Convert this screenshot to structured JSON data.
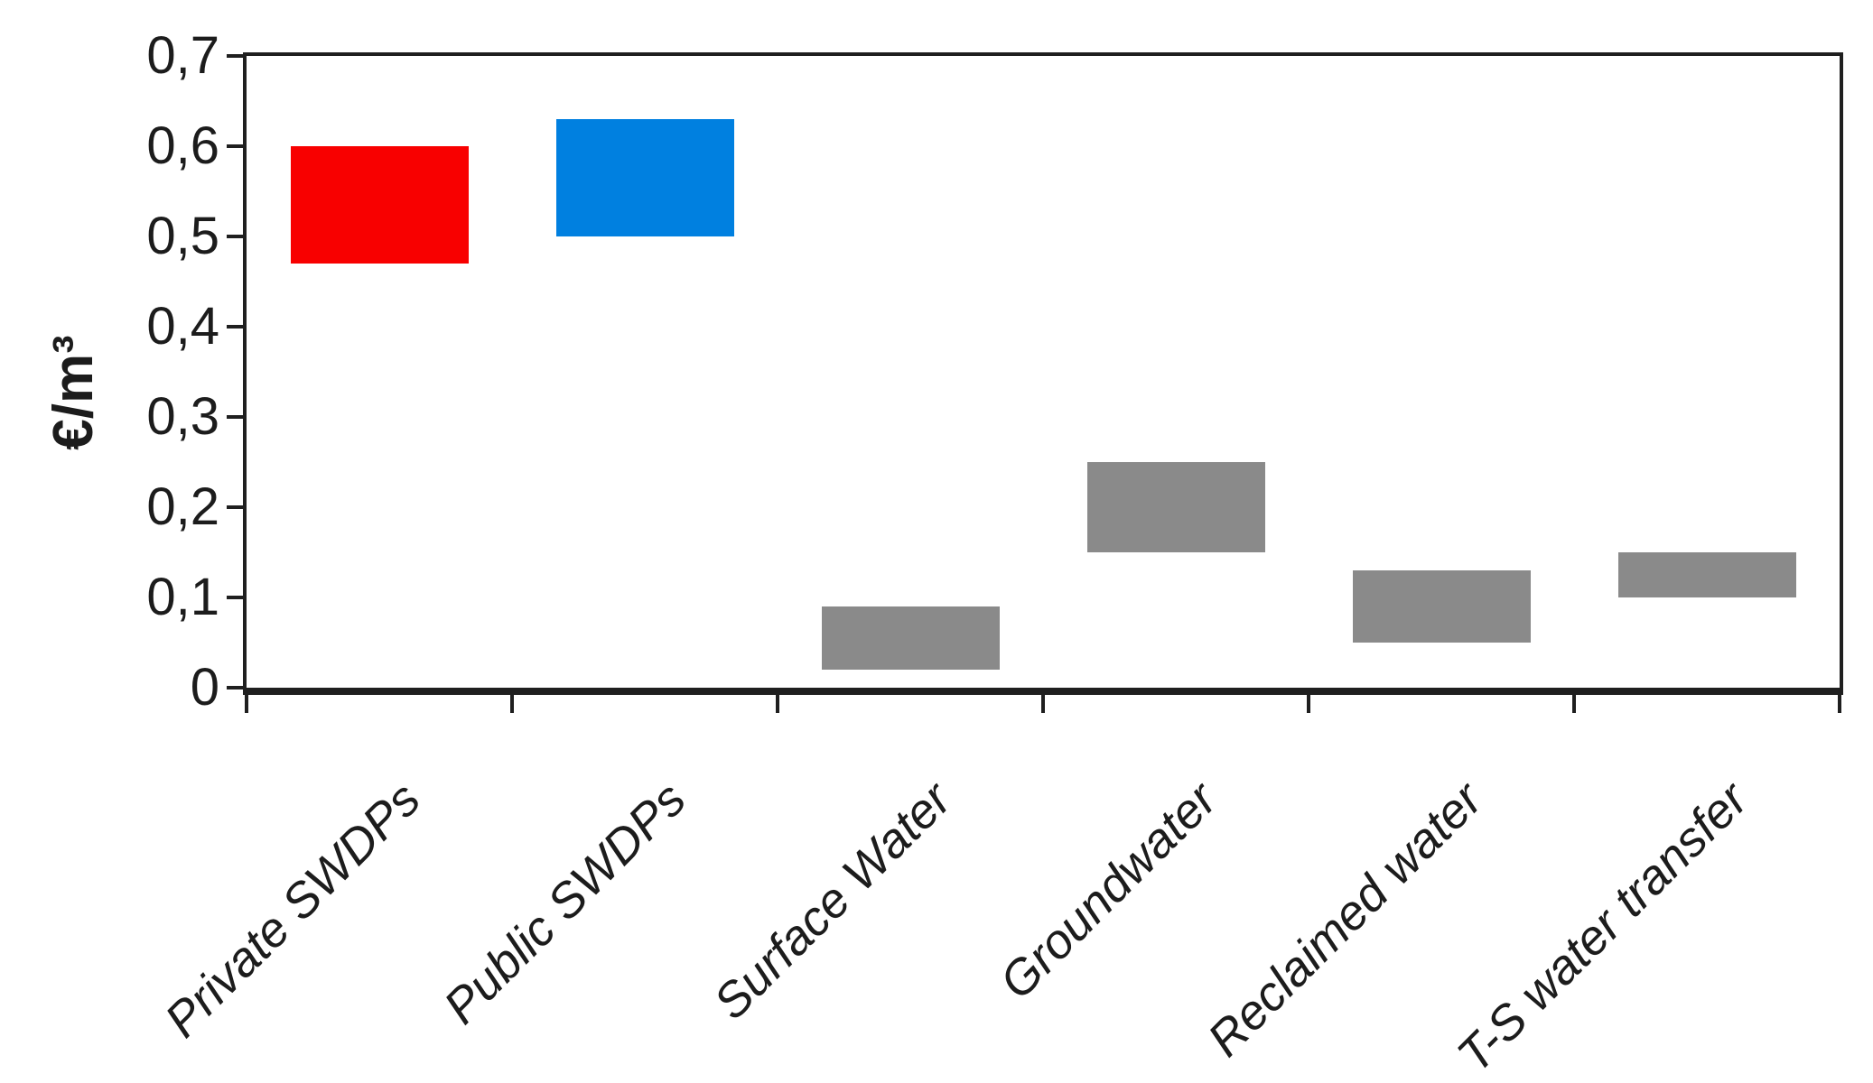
{
  "figure": {
    "background_color": "#ffffff",
    "axis_color": "#1f1f1f",
    "text_color": "#1c1c1c"
  },
  "chart_data": {
    "type": "bar",
    "subtype": "floating-range-bars",
    "title": "",
    "xlabel": "",
    "ylabel": "€/m³",
    "ylim": [
      0,
      0.7
    ],
    "ytick_step": 0.1,
    "ytick_labels": [
      "0",
      "0,1",
      "0,2",
      "0,3",
      "0,4",
      "0,5",
      "0,6",
      "0,7"
    ],
    "decimal_separator": ",",
    "grid": false,
    "legend_position": "none",
    "categories": [
      "Private SWDPs",
      "Public SWDPs",
      "Surface Water",
      "Groundwater",
      "Reclaimed water",
      "T-S water transfer"
    ],
    "series": [
      {
        "name": "Private SWDPs",
        "low": 0.47,
        "high": 0.6,
        "color": "#f80000"
      },
      {
        "name": "Public SWDPs",
        "low": 0.5,
        "high": 0.63,
        "color": "#0080e0"
      },
      {
        "name": "Surface Water",
        "low": 0.02,
        "high": 0.09,
        "color": "#8a8a8a"
      },
      {
        "name": "Groundwater",
        "low": 0.15,
        "high": 0.25,
        "color": "#8a8a8a"
      },
      {
        "name": "Reclaimed water",
        "low": 0.05,
        "high": 0.13,
        "color": "#8a8a8a"
      },
      {
        "name": "T-S water transfer",
        "low": 0.1,
        "high": 0.15,
        "color": "#8a8a8a"
      }
    ]
  }
}
